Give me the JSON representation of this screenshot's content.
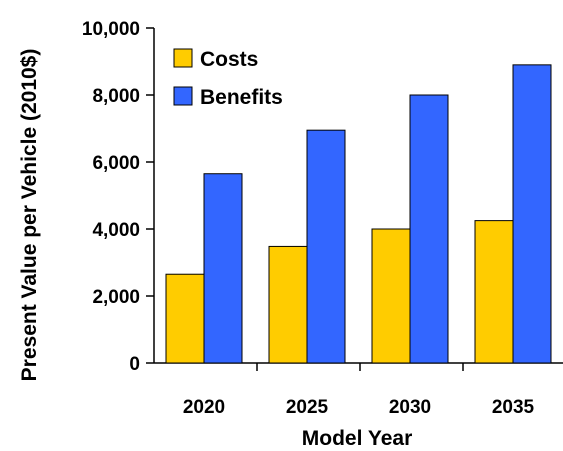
{
  "chart_data": {
    "type": "bar",
    "title": "",
    "xlabel": "Model Year",
    "ylabel": "Present Value per Vehicle (2010$)",
    "categories": [
      "2020",
      "2025",
      "2030",
      "2035"
    ],
    "series": [
      {
        "name": "Costs",
        "values": [
          2650,
          3480,
          4000,
          4250
        ],
        "color": "#FFCC00"
      },
      {
        "name": "Benefits",
        "values": [
          5650,
          6950,
          8000,
          8900
        ],
        "color": "#3366FF"
      }
    ],
    "ylim": [
      0,
      10000
    ],
    "yticks": [
      "0",
      "2,000",
      "4,000",
      "6,000",
      "8,000",
      "10,000"
    ],
    "grid": false,
    "legend_position": "top-left"
  }
}
